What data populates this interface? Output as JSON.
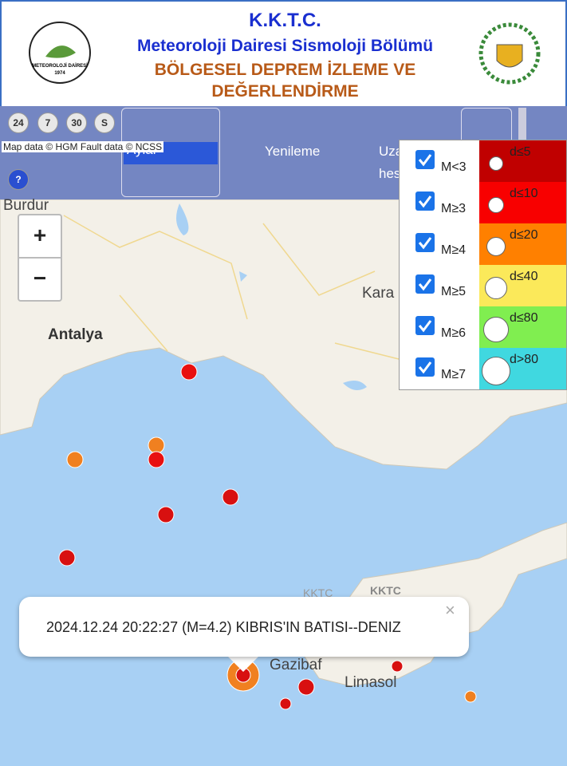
{
  "header": {
    "title": "K.K.T.C.",
    "subtitle": "Meteoroloji Dairesi Sismoloji Bölümü",
    "heading_lines": [
      "BÖLGESEL DEPREM İZLEME VE",
      "DEĞERLENDİRME"
    ],
    "logo_text": "METEOROLOJİ DAİRESİ",
    "logo_year": "1974"
  },
  "toolbar": {
    "period_buttons": [
      "24",
      "7",
      "30",
      "S"
    ],
    "help": "?",
    "select": "Aylar",
    "refresh": "Yenileme",
    "distance": [
      "Uza",
      "hes"
    ]
  },
  "map": {
    "attribution": "Map data © HGM Fault data © NCSS",
    "zoom_in": "+",
    "zoom_out": "−",
    "labels": [
      "Burdur",
      "Antalya",
      "Kara",
      "KKTC",
      "KKTC",
      "Gazibaf",
      "Limasol"
    ]
  },
  "legend": {
    "magnitudes": [
      "M<3",
      "M≥3",
      "M≥4",
      "M≥5",
      "M≥6",
      "M≥7"
    ],
    "depths": [
      "d≤5",
      "d≤10",
      "d≤20",
      "d≤40",
      "d≤80",
      "d>80"
    ]
  },
  "popup": {
    "text": "2024.12.24 20:22:27 (M=4.2) KIBRIS'IN BATISI--DENIZ",
    "close": "×"
  }
}
